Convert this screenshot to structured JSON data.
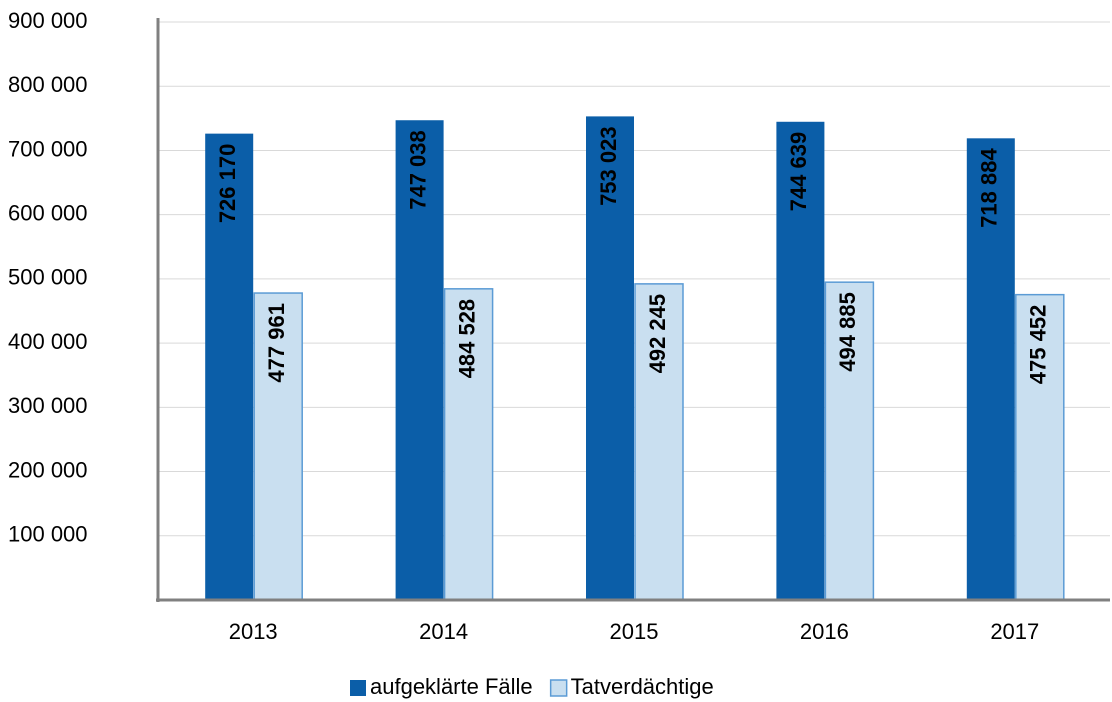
{
  "chart_data": {
    "type": "bar",
    "categories": [
      "2013",
      "2014",
      "2015",
      "2016",
      "2017"
    ],
    "series": [
      {
        "name": "aufgeklärte Fälle",
        "color": "#0b5ea8",
        "values": [
          726170,
          747038,
          753023,
          744639,
          718884
        ],
        "value_labels": [
          "726 170",
          "747 038",
          "753 023",
          "744 639",
          "718 884"
        ]
      },
      {
        "name": "Tatverdächtige",
        "color": "#c9dff0",
        "values": [
          477961,
          484528,
          492245,
          494885,
          475452
        ],
        "value_labels": [
          "477 961",
          "484 528",
          "492 245",
          "494 885",
          "475 452"
        ]
      }
    ],
    "ylim": [
      0,
      900000
    ],
    "yticks": [
      {
        "value": 100000,
        "label": "100 000"
      },
      {
        "value": 200000,
        "label": "200 000"
      },
      {
        "value": 300000,
        "label": "300 000"
      },
      {
        "value": 400000,
        "label": "400 000"
      },
      {
        "value": 500000,
        "label": "500 000"
      },
      {
        "value": 600000,
        "label": "600 000"
      },
      {
        "value": 700000,
        "label": "700 000"
      },
      {
        "value": 800000,
        "label": "800 000"
      },
      {
        "value": 900000,
        "label": "900 000"
      }
    ],
    "grid": true,
    "legend": "bottom"
  }
}
